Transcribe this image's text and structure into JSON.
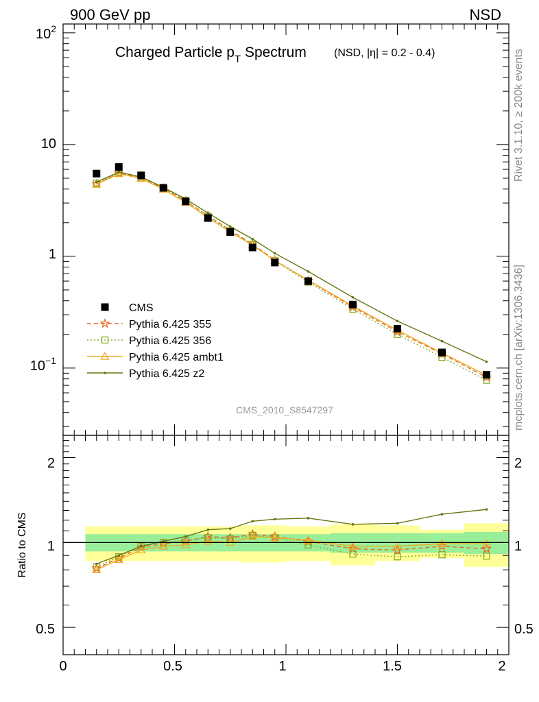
{
  "header": {
    "left_label": "900 GeV pp",
    "right_label": "NSD"
  },
  "side_labels": {
    "rivet": "Rivet 3.1.10, ≥ 200k events",
    "mcplots": "mcplots.cern.ch [arXiv:1306.3436]"
  },
  "main_plot": {
    "title_main": "Charged Particle p",
    "title_sub": "T",
    "title_tail": " Spectrum",
    "title_extra": "(NSD, |η| = 0.2 - 0.4)",
    "watermark": "CMS_2010_S8547297",
    "ytick_labels": {
      "1e2_base": "10",
      "1e2_exp": "2",
      "10": "10",
      "1": "1",
      "1e-1_base": "10",
      "1e-1_exp": "−1"
    }
  },
  "ratio_plot": {
    "ylabel": "Ratio to CMS",
    "ytick_labels": [
      "0.5",
      "1",
      "2"
    ],
    "xtick_labels": [
      "0",
      "0.5",
      "1",
      "1.5",
      "2"
    ]
  },
  "legend": [
    {
      "label": "CMS",
      "color": "#000000",
      "marker": "square-filled",
      "line": "none"
    },
    {
      "label": "Pythia 6.425 355",
      "color": "#ee6622",
      "marker": "star-open",
      "line": "dashed"
    },
    {
      "label": "Pythia 6.425 356",
      "color": "#88aa22",
      "marker": "square-open",
      "line": "dotted"
    },
    {
      "label": "Pythia 6.425 ambt1",
      "color": "#eeaa22",
      "marker": "triangle-open",
      "line": "solid"
    },
    {
      "label": "Pythia 6.425 z2",
      "color": "#667711",
      "marker": "dot",
      "line": "solid"
    }
  ],
  "chart_data": {
    "type": "scatter",
    "x_range": [
      0,
      2
    ],
    "y_range_main": [
      0.025,
      120
    ],
    "y_scale_main": "log",
    "y_range_ratio": [
      0.4,
      2.4
    ],
    "y_scale_ratio": "log",
    "grid": false,
    "legend_position": "bottom-left",
    "cms_bins": [
      {
        "x": 0.15,
        "y": 5.5,
        "lo": 0.1,
        "hi": 0.2,
        "band_in_lo": 0.93,
        "band_in_hi": 1.07,
        "band_out_lo": 0.86,
        "band_out_hi": 1.14
      },
      {
        "x": 0.25,
        "y": 6.3,
        "lo": 0.2,
        "hi": 0.3,
        "band_in_lo": 0.93,
        "band_in_hi": 1.07,
        "band_out_lo": 0.86,
        "band_out_hi": 1.14
      },
      {
        "x": 0.35,
        "y": 5.3,
        "lo": 0.3,
        "hi": 0.4,
        "band_in_lo": 0.93,
        "band_in_hi": 1.07,
        "band_out_lo": 0.86,
        "band_out_hi": 1.14
      },
      {
        "x": 0.45,
        "y": 4.1,
        "lo": 0.4,
        "hi": 0.5,
        "band_in_lo": 0.93,
        "band_in_hi": 1.07,
        "band_out_lo": 0.86,
        "band_out_hi": 1.14
      },
      {
        "x": 0.55,
        "y": 3.1,
        "lo": 0.5,
        "hi": 0.6,
        "band_in_lo": 0.93,
        "band_in_hi": 1.07,
        "band_out_lo": 0.86,
        "band_out_hi": 1.14
      },
      {
        "x": 0.65,
        "y": 2.2,
        "lo": 0.6,
        "hi": 0.7,
        "band_in_lo": 0.93,
        "band_in_hi": 1.07,
        "band_out_lo": 0.86,
        "band_out_hi": 1.14
      },
      {
        "x": 0.75,
        "y": 1.65,
        "lo": 0.7,
        "hi": 0.8,
        "band_in_lo": 0.93,
        "band_in_hi": 1.07,
        "band_out_lo": 0.86,
        "band_out_hi": 1.14
      },
      {
        "x": 0.85,
        "y": 1.2,
        "lo": 0.8,
        "hi": 0.9,
        "band_in_lo": 0.93,
        "band_in_hi": 1.07,
        "band_out_lo": 0.85,
        "band_out_hi": 1.15
      },
      {
        "x": 0.95,
        "y": 0.88,
        "lo": 0.9,
        "hi": 1.0,
        "band_in_lo": 0.93,
        "band_in_hi": 1.07,
        "band_out_lo": 0.85,
        "band_out_hi": 1.15
      },
      {
        "x": 1.1,
        "y": 0.6,
        "lo": 1.0,
        "hi": 1.2,
        "band_in_lo": 0.93,
        "band_in_hi": 1.07,
        "band_out_lo": 0.86,
        "band_out_hi": 1.14
      },
      {
        "x": 1.3,
        "y": 0.37,
        "lo": 1.2,
        "hi": 1.4,
        "band_in_lo": 0.92,
        "band_in_hi": 1.08,
        "band_out_lo": 0.83,
        "band_out_hi": 1.16
      },
      {
        "x": 1.5,
        "y": 0.225,
        "lo": 1.4,
        "hi": 1.6,
        "band_in_lo": 0.92,
        "band_in_hi": 1.08,
        "band_out_lo": 0.86,
        "band_out_hi": 1.15
      },
      {
        "x": 1.7,
        "y": 0.138,
        "lo": 1.6,
        "hi": 1.8,
        "band_in_lo": 0.92,
        "band_in_hi": 1.08,
        "band_out_lo": 0.88,
        "band_out_hi": 1.11
      },
      {
        "x": 1.9,
        "y": 0.087,
        "lo": 1.8,
        "hi": 2.0,
        "band_in_lo": 0.91,
        "band_in_hi": 1.09,
        "band_out_lo": 0.82,
        "band_out_hi": 1.17
      }
    ],
    "x": [
      0.15,
      0.25,
      0.35,
      0.45,
      0.55,
      0.65,
      0.75,
      0.85,
      0.95,
      1.1,
      1.3,
      1.5,
      1.7,
      1.9
    ],
    "series": [
      {
        "name": "Pythia 6.425 355",
        "ratio": [
          0.81,
          0.88,
          0.96,
          0.99,
          1.01,
          1.05,
          1.04,
          1.07,
          1.05,
          1.01,
          0.95,
          0.94,
          0.97,
          0.95
        ]
      },
      {
        "name": "Pythia 6.425 356",
        "ratio": [
          0.82,
          0.89,
          0.97,
          1.0,
          1.02,
          1.04,
          1.03,
          1.06,
          1.04,
          0.98,
          0.91,
          0.89,
          0.905,
          0.895
        ]
      },
      {
        "name": "Pythia 6.425 ambt1",
        "ratio": [
          0.8,
          0.87,
          0.94,
          0.97,
          0.98,
          1.01,
          1.0,
          1.05,
          1.04,
          1.02,
          0.97,
          0.97,
          0.99,
          0.99
        ]
      },
      {
        "name": "Pythia 6.425 z2",
        "ratio": [
          0.84,
          0.9,
          0.97,
          1.01,
          1.05,
          1.11,
          1.12,
          1.19,
          1.21,
          1.22,
          1.16,
          1.17,
          1.26,
          1.31
        ]
      }
    ]
  }
}
